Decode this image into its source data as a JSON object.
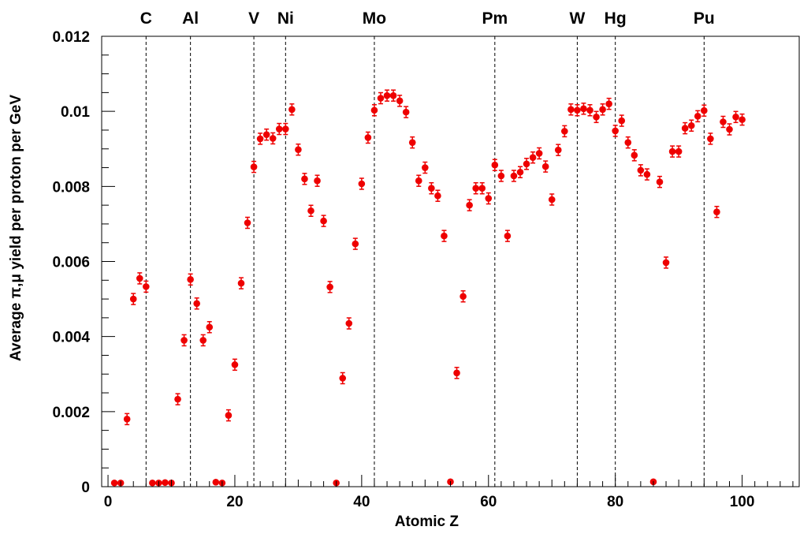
{
  "chart_data": {
    "type": "scatter",
    "xlabel": "Atomic Z",
    "ylabel": "Average π,μ yield per proton per GeV",
    "xlim": [
      -1,
      109
    ],
    "ylim": [
      0,
      0.012
    ],
    "x_ticks": [
      "0",
      "20",
      "40",
      "60",
      "80",
      "100"
    ],
    "y_ticks": [
      "0",
      "0.002",
      "0.004",
      "0.006",
      "0.008",
      "0.01",
      "0.012"
    ],
    "grid": false,
    "marker_color": "#ee0000",
    "reference_lines": [
      {
        "label": "C",
        "z": 6
      },
      {
        "label": "Al",
        "z": 13
      },
      {
        "label": "V",
        "z": 23
      },
      {
        "label": "Ni",
        "z": 28
      },
      {
        "label": "Mo",
        "z": 42
      },
      {
        "label": "Pm",
        "z": 61
      },
      {
        "label": "W",
        "z": 74
      },
      {
        "label": "Hg",
        "z": 80
      },
      {
        "label": "Pu",
        "z": 94
      }
    ],
    "points": [
      {
        "x": 1,
        "y": 0.0001
      },
      {
        "x": 2,
        "y": 0.0001
      },
      {
        "x": 3,
        "y": 0.0018
      },
      {
        "x": 4,
        "y": 0.005
      },
      {
        "x": 5,
        "y": 0.00555
      },
      {
        "x": 6,
        "y": 0.00533
      },
      {
        "x": 7,
        "y": 0.0001
      },
      {
        "x": 8,
        "y": 0.0001
      },
      {
        "x": 9,
        "y": 0.00011
      },
      {
        "x": 10,
        "y": 0.0001
      },
      {
        "x": 11,
        "y": 0.00233
      },
      {
        "x": 12,
        "y": 0.0039
      },
      {
        "x": 13,
        "y": 0.00552
      },
      {
        "x": 14,
        "y": 0.00488
      },
      {
        "x": 15,
        "y": 0.0039
      },
      {
        "x": 16,
        "y": 0.00425
      },
      {
        "x": 17,
        "y": 0.00012
      },
      {
        "x": 18,
        "y": 0.0001
      },
      {
        "x": 19,
        "y": 0.0019
      },
      {
        "x": 20,
        "y": 0.00325
      },
      {
        "x": 21,
        "y": 0.00542
      },
      {
        "x": 22,
        "y": 0.00703
      },
      {
        "x": 23,
        "y": 0.00852
      },
      {
        "x": 24,
        "y": 0.00927
      },
      {
        "x": 25,
        "y": 0.00938
      },
      {
        "x": 26,
        "y": 0.00928
      },
      {
        "x": 27,
        "y": 0.00953
      },
      {
        "x": 28,
        "y": 0.00953
      },
      {
        "x": 29,
        "y": 0.01005
      },
      {
        "x": 30,
        "y": 0.00898
      },
      {
        "x": 31,
        "y": 0.0082
      },
      {
        "x": 32,
        "y": 0.00735
      },
      {
        "x": 33,
        "y": 0.00815
      },
      {
        "x": 34,
        "y": 0.00708
      },
      {
        "x": 35,
        "y": 0.00532
      },
      {
        "x": 36,
        "y": 0.0001
      },
      {
        "x": 37,
        "y": 0.00289
      },
      {
        "x": 38,
        "y": 0.00435
      },
      {
        "x": 39,
        "y": 0.00647
      },
      {
        "x": 40,
        "y": 0.00807
      },
      {
        "x": 41,
        "y": 0.0093
      },
      {
        "x": 42,
        "y": 0.01003
      },
      {
        "x": 43,
        "y": 0.01035
      },
      {
        "x": 44,
        "y": 0.01042
      },
      {
        "x": 45,
        "y": 0.01042
      },
      {
        "x": 46,
        "y": 0.01028
      },
      {
        "x": 47,
        "y": 0.00998
      },
      {
        "x": 48,
        "y": 0.00917
      },
      {
        "x": 49,
        "y": 0.00815
      },
      {
        "x": 50,
        "y": 0.0085
      },
      {
        "x": 51,
        "y": 0.00795
      },
      {
        "x": 52,
        "y": 0.00775
      },
      {
        "x": 53,
        "y": 0.00668
      },
      {
        "x": 54,
        "y": 0.00013
      },
      {
        "x": 55,
        "y": 0.00303
      },
      {
        "x": 56,
        "y": 0.00507
      },
      {
        "x": 57,
        "y": 0.0075
      },
      {
        "x": 58,
        "y": 0.00795
      },
      {
        "x": 59,
        "y": 0.00795
      },
      {
        "x": 60,
        "y": 0.00768
      },
      {
        "x": 61,
        "y": 0.00857
      },
      {
        "x": 62,
        "y": 0.00828
      },
      {
        "x": 63,
        "y": 0.00668
      },
      {
        "x": 64,
        "y": 0.00828
      },
      {
        "x": 65,
        "y": 0.00838
      },
      {
        "x": 66,
        "y": 0.0086
      },
      {
        "x": 67,
        "y": 0.00877
      },
      {
        "x": 68,
        "y": 0.00888
      },
      {
        "x": 69,
        "y": 0.00853
      },
      {
        "x": 70,
        "y": 0.00765
      },
      {
        "x": 71,
        "y": 0.00897
      },
      {
        "x": 72,
        "y": 0.00947
      },
      {
        "x": 73,
        "y": 0.01005
      },
      {
        "x": 74,
        "y": 0.01003
      },
      {
        "x": 75,
        "y": 0.01007
      },
      {
        "x": 76,
        "y": 0.01003
      },
      {
        "x": 77,
        "y": 0.00985
      },
      {
        "x": 78,
        "y": 0.01005
      },
      {
        "x": 79,
        "y": 0.0102
      },
      {
        "x": 80,
        "y": 0.00948
      },
      {
        "x": 81,
        "y": 0.00975
      },
      {
        "x": 82,
        "y": 0.00917
      },
      {
        "x": 83,
        "y": 0.00883
      },
      {
        "x": 84,
        "y": 0.00843
      },
      {
        "x": 85,
        "y": 0.00832
      },
      {
        "x": 86,
        "y": 0.00013
      },
      {
        "x": 87,
        "y": 0.00812
      },
      {
        "x": 88,
        "y": 0.00597
      },
      {
        "x": 89,
        "y": 0.00893
      },
      {
        "x": 90,
        "y": 0.00893
      },
      {
        "x": 91,
        "y": 0.00955
      },
      {
        "x": 92,
        "y": 0.00962
      },
      {
        "x": 93,
        "y": 0.00987
      },
      {
        "x": 94,
        "y": 0.01002
      },
      {
        "x": 95,
        "y": 0.00927
      },
      {
        "x": 96,
        "y": 0.00732
      },
      {
        "x": 97,
        "y": 0.00972
      },
      {
        "x": 98,
        "y": 0.00952
      },
      {
        "x": 99,
        "y": 0.00985
      },
      {
        "x": 100,
        "y": 0.00978
      }
    ]
  }
}
